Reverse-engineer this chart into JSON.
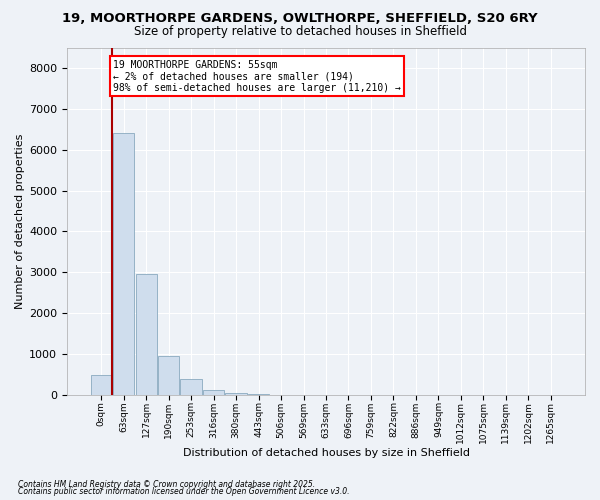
{
  "title_line1": "19, MOORTHORPE GARDENS, OWLTHORPE, SHEFFIELD, S20 6RY",
  "title_line2": "Size of property relative to detached houses in Sheffield",
  "xlabel": "Distribution of detached houses by size in Sheffield",
  "ylabel": "Number of detached properties",
  "footnote1": "Contains HM Land Registry data © Crown copyright and database right 2025.",
  "footnote2": "Contains public sector information licensed under the Open Government Licence v3.0.",
  "annotation_title": "19 MOORTHORPE GARDENS: 55sqm",
  "annotation_line1": "← 2% of detached houses are smaller (194)",
  "annotation_line2": "98% of semi-detached houses are larger (11,210) →",
  "bar_color": "#cfdded",
  "bar_edge_color": "#8aaabf",
  "vline_color": "#aa0000",
  "categories": [
    "0sqm",
    "63sqm",
    "127sqm",
    "190sqm",
    "253sqm",
    "316sqm",
    "380sqm",
    "443sqm",
    "506sqm",
    "569sqm",
    "633sqm",
    "696sqm",
    "759sqm",
    "822sqm",
    "886sqm",
    "949sqm",
    "1012sqm",
    "1075sqm",
    "1139sqm",
    "1202sqm",
    "1265sqm"
  ],
  "values": [
    480,
    6400,
    2950,
    950,
    380,
    130,
    60,
    15,
    0,
    0,
    0,
    0,
    0,
    0,
    0,
    0,
    0,
    0,
    0,
    0,
    0
  ],
  "ylim": [
    0,
    8500
  ],
  "yticks": [
    0,
    1000,
    2000,
    3000,
    4000,
    5000,
    6000,
    7000,
    8000
  ],
  "bg_color": "#eef2f7",
  "plot_bg_color": "#eef2f7",
  "grid_color": "#ffffff",
  "title_fontsize": 9.5,
  "subtitle_fontsize": 8.5
}
